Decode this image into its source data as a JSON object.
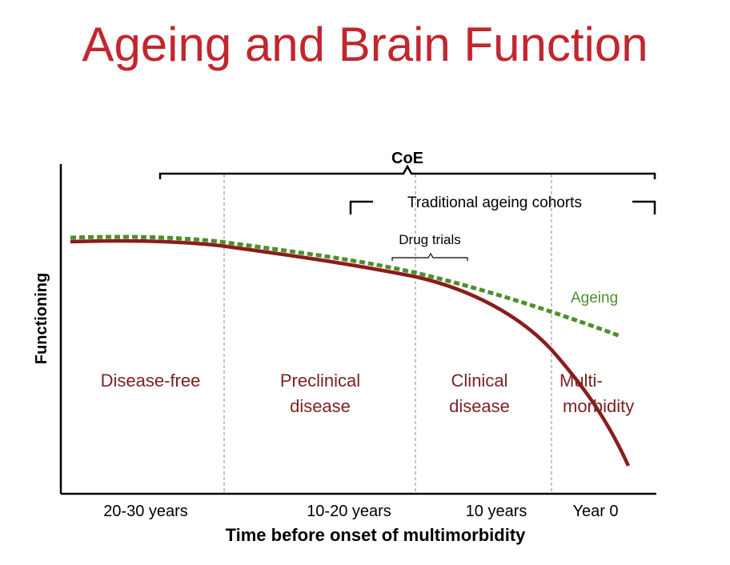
{
  "title": "Ageing and Brain Function",
  "colors": {
    "title": "#c2262e",
    "disease_curve": "#8b1c1c",
    "ageing_curve": "#4e8f2c",
    "phase_text": "#7a2222",
    "axis": "#000000",
    "divider": "#b0b0b0"
  },
  "brackets": {
    "coe": "CoE",
    "traditional": "Traditional ageing cohorts",
    "drug_trials": "Drug trials"
  },
  "phases": {
    "disease_free": "Disease-free",
    "preclinical_1": "Preclinical",
    "preclinical_2": "disease",
    "clinical_1": "Clinical",
    "clinical_2": "disease",
    "multi_1": "Multi-",
    "multi_2": "morbidity"
  },
  "series_labels": {
    "ageing": "Ageing"
  },
  "axes": {
    "ylabel": "Functioning",
    "xlabel": "Time before onset of multimorbidity",
    "xticks": [
      "20-30 years",
      "10-20 years",
      "10 years",
      "Year 0"
    ]
  }
}
